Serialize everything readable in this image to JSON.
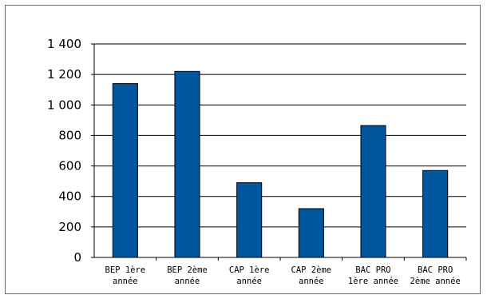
{
  "chart_data": {
    "type": "bar",
    "categories": [
      [
        "BEP 1ère",
        "année"
      ],
      [
        "BEP 2ème",
        "année"
      ],
      [
        "CAP 1ère",
        "année"
      ],
      [
        "CAP 2ème",
        "année"
      ],
      [
        "BAC PRO",
        "1ère année"
      ],
      [
        "BAC PRO",
        "2ème année"
      ]
    ],
    "values": [
      1140,
      1220,
      490,
      320,
      865,
      570
    ],
    "ylim": [
      0,
      1400
    ],
    "yticks": [
      0,
      200,
      400,
      600,
      800,
      1000,
      1200,
      1400
    ],
    "ytick_labels": [
      "0",
      "200",
      "400",
      "600",
      "800",
      "1 000",
      "1 200",
      "1 400"
    ],
    "title": "",
    "xlabel": "",
    "ylabel": "",
    "grid": true,
    "legend": "none",
    "bar_color": "#0057a0",
    "bar_edge_color": "#000000"
  }
}
